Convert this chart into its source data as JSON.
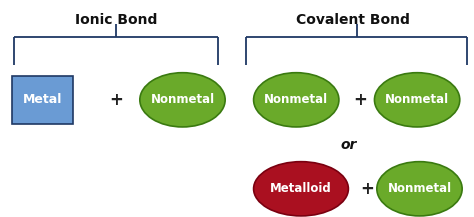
{
  "title_ionic": "Ionic Bond",
  "title_covalent": "Covalent Bond",
  "or_text": "or",
  "bg_color": "#ffffff",
  "metal_label": "Metal",
  "nonmetal_label": "Nonmetal",
  "metalloid_label": "Metalloid",
  "metal_box_color_top": "#6a9bd4",
  "metal_box_color_bot": "#2f5597",
  "metal_box_edge": "#1f3864",
  "nonmetal_color": "#6aaa2a",
  "nonmetal_edge": "#3a7a10",
  "metalloid_color": "#aa1020",
  "metalloid_edge": "#7a0010",
  "plus_color": "#222222",
  "title_color": "#111111",
  "bracket_color": "#1f3864",
  "text_color": "#ffffff",
  "figsize": [
    4.74,
    2.17
  ],
  "dpi": 100
}
